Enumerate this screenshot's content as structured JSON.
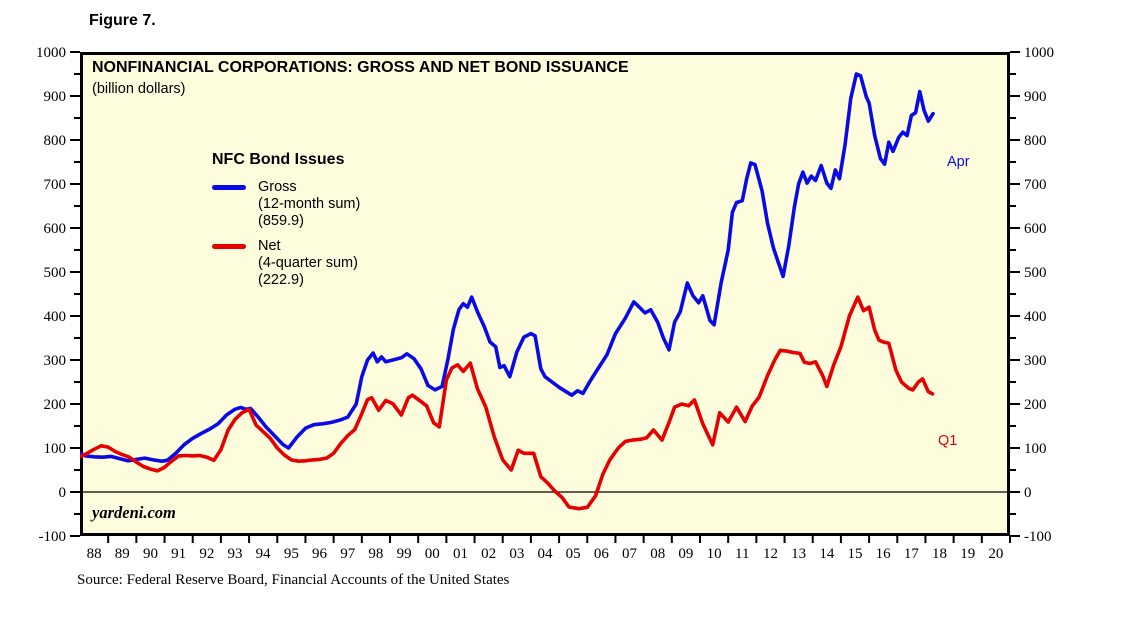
{
  "figure_label": "Figure 7.",
  "chart": {
    "title": "NONFINANCIAL CORPORATIONS: GROSS AND NET BOND ISSUANCE",
    "subtitle": "(billion dollars)",
    "watermark": "yardeni.com",
    "colors": {
      "gross": "#0A0AE6",
      "net": "#E60000",
      "plot_background": "#FDFDDE",
      "frame": "#000000"
    },
    "legend": {
      "title": "NFC Bond Issues",
      "entries": [
        {
          "label": "Gross",
          "sub": "(12-month sum)",
          "value": "(859.9)"
        },
        {
          "label": "Net",
          "sub": "(4-quarter sum)",
          "value": "(222.9)"
        }
      ]
    },
    "end_labels": {
      "gross": "Apr",
      "net": "Q1"
    }
  },
  "source": "Source: Federal Reserve Board, Financial Accounts of the United States",
  "chart_data": {
    "type": "line",
    "title": "NONFINANCIAL CORPORATIONS: GROSS AND NET BOND ISSUANCE",
    "subtitle": "(billion dollars)",
    "ylabel": "billion dollars",
    "x_range": [
      1988,
      2021
    ],
    "y_range": [
      -100,
      1000
    ],
    "y_ticks": [
      1000,
      900,
      800,
      700,
      600,
      500,
      400,
      300,
      200,
      100,
      0,
      -100
    ],
    "y_minor_step": 50,
    "grid": "zero-line-only",
    "legend_position": "inside-top-left",
    "x_ticks": [
      "88",
      "89",
      "90",
      "91",
      "92",
      "93",
      "94",
      "95",
      "96",
      "97",
      "98",
      "99",
      "00",
      "01",
      "02",
      "03",
      "04",
      "05",
      "06",
      "07",
      "08",
      "09",
      "10",
      "11",
      "12",
      "13",
      "14",
      "15",
      "16",
      "17",
      "18",
      "19",
      "20"
    ],
    "series": [
      {
        "name": "Gross (12-month sum)",
        "color": "#0A0AE6",
        "latest_label": "Apr",
        "latest_value": 859.9,
        "points": [
          [
            1988.0,
            88
          ],
          [
            1988.2,
            82
          ],
          [
            1988.5,
            80
          ],
          [
            1988.8,
            79
          ],
          [
            1989.1,
            81
          ],
          [
            1989.4,
            76
          ],
          [
            1989.7,
            71
          ],
          [
            1990.0,
            74
          ],
          [
            1990.3,
            77
          ],
          [
            1990.6,
            73
          ],
          [
            1990.9,
            70
          ],
          [
            1991.1,
            72
          ],
          [
            1991.4,
            88
          ],
          [
            1991.7,
            108
          ],
          [
            1992.0,
            122
          ],
          [
            1992.3,
            133
          ],
          [
            1992.6,
            143
          ],
          [
            1992.9,
            155
          ],
          [
            1993.2,
            175
          ],
          [
            1993.5,
            188
          ],
          [
            1993.7,
            192
          ],
          [
            1993.9,
            188
          ],
          [
            1994.05,
            190
          ],
          [
            1994.3,
            172
          ],
          [
            1994.6,
            148
          ],
          [
            1994.9,
            128
          ],
          [
            1995.2,
            108
          ],
          [
            1995.4,
            100
          ],
          [
            1995.7,
            125
          ],
          [
            1996.0,
            145
          ],
          [
            1996.3,
            153
          ],
          [
            1996.6,
            155
          ],
          [
            1996.9,
            158
          ],
          [
            1997.2,
            163
          ],
          [
            1997.5,
            170
          ],
          [
            1997.8,
            200
          ],
          [
            1998.0,
            262
          ],
          [
            1998.2,
            300
          ],
          [
            1998.4,
            316
          ],
          [
            1998.55,
            296
          ],
          [
            1998.7,
            307
          ],
          [
            1998.85,
            296
          ],
          [
            1999.1,
            300
          ],
          [
            1999.4,
            305
          ],
          [
            1999.6,
            314
          ],
          [
            1999.85,
            303
          ],
          [
            2000.1,
            280
          ],
          [
            2000.35,
            242
          ],
          [
            2000.6,
            232
          ],
          [
            2000.85,
            240
          ],
          [
            2001.05,
            300
          ],
          [
            2001.25,
            370
          ],
          [
            2001.45,
            415
          ],
          [
            2001.6,
            428
          ],
          [
            2001.75,
            420
          ],
          [
            2001.9,
            443
          ],
          [
            2002.1,
            410
          ],
          [
            2002.35,
            375
          ],
          [
            2002.55,
            341
          ],
          [
            2002.75,
            330
          ],
          [
            2002.9,
            283
          ],
          [
            2003.05,
            287
          ],
          [
            2003.25,
            262
          ],
          [
            2003.5,
            318
          ],
          [
            2003.75,
            352
          ],
          [
            2004.0,
            360
          ],
          [
            2004.15,
            355
          ],
          [
            2004.35,
            280
          ],
          [
            2004.5,
            262
          ],
          [
            2004.75,
            250
          ],
          [
            2005.0,
            238
          ],
          [
            2005.25,
            228
          ],
          [
            2005.45,
            220
          ],
          [
            2005.65,
            230
          ],
          [
            2005.85,
            224
          ],
          [
            2006.1,
            252
          ],
          [
            2006.4,
            282
          ],
          [
            2006.7,
            312
          ],
          [
            2007.0,
            360
          ],
          [
            2007.35,
            395
          ],
          [
            2007.65,
            432
          ],
          [
            2007.85,
            420
          ],
          [
            2008.05,
            407
          ],
          [
            2008.25,
            414
          ],
          [
            2008.5,
            386
          ],
          [
            2008.7,
            350
          ],
          [
            2008.9,
            323
          ],
          [
            2009.1,
            386
          ],
          [
            2009.3,
            410
          ],
          [
            2009.55,
            475
          ],
          [
            2009.75,
            446
          ],
          [
            2009.95,
            430
          ],
          [
            2010.1,
            446
          ],
          [
            2010.35,
            390
          ],
          [
            2010.5,
            380
          ],
          [
            2010.75,
            475
          ],
          [
            2011.0,
            550
          ],
          [
            2011.15,
            636
          ],
          [
            2011.3,
            658
          ],
          [
            2011.5,
            662
          ],
          [
            2011.65,
            710
          ],
          [
            2011.8,
            748
          ],
          [
            2011.95,
            744
          ],
          [
            2012.2,
            685
          ],
          [
            2012.4,
            610
          ],
          [
            2012.6,
            556
          ],
          [
            2012.75,
            527
          ],
          [
            2012.95,
            490
          ],
          [
            2013.15,
            560
          ],
          [
            2013.35,
            648
          ],
          [
            2013.5,
            700
          ],
          [
            2013.65,
            727
          ],
          [
            2013.8,
            702
          ],
          [
            2013.95,
            718
          ],
          [
            2014.1,
            708
          ],
          [
            2014.3,
            742
          ],
          [
            2014.5,
            702
          ],
          [
            2014.65,
            690
          ],
          [
            2014.8,
            732
          ],
          [
            2014.95,
            712
          ],
          [
            2015.15,
            790
          ],
          [
            2015.35,
            895
          ],
          [
            2015.55,
            950
          ],
          [
            2015.7,
            946
          ],
          [
            2015.9,
            898
          ],
          [
            2016.0,
            884
          ],
          [
            2016.2,
            810
          ],
          [
            2016.4,
            758
          ],
          [
            2016.55,
            745
          ],
          [
            2016.7,
            795
          ],
          [
            2016.85,
            774
          ],
          [
            2017.05,
            806
          ],
          [
            2017.2,
            818
          ],
          [
            2017.35,
            810
          ],
          [
            2017.5,
            856
          ],
          [
            2017.65,
            862
          ],
          [
            2017.8,
            910
          ],
          [
            2017.95,
            868
          ],
          [
            2018.1,
            843
          ],
          [
            2018.27,
            860
          ]
        ]
      },
      {
        "name": "Net (4-quarter sum)",
        "color": "#E60000",
        "latest_label": "Q1",
        "latest_value": 222.9,
        "points": [
          [
            1988.0,
            80
          ],
          [
            1988.25,
            88
          ],
          [
            1988.5,
            97
          ],
          [
            1988.75,
            105
          ],
          [
            1989.0,
            102
          ],
          [
            1989.25,
            92
          ],
          [
            1989.5,
            85
          ],
          [
            1989.75,
            79
          ],
          [
            1990.0,
            68
          ],
          [
            1990.25,
            58
          ],
          [
            1990.5,
            52
          ],
          [
            1990.75,
            48
          ],
          [
            1991.0,
            56
          ],
          [
            1991.25,
            70
          ],
          [
            1991.5,
            82
          ],
          [
            1991.75,
            83
          ],
          [
            1992.0,
            82
          ],
          [
            1992.25,
            83
          ],
          [
            1992.5,
            79
          ],
          [
            1992.75,
            72
          ],
          [
            1993.0,
            96
          ],
          [
            1993.25,
            140
          ],
          [
            1993.5,
            165
          ],
          [
            1993.75,
            180
          ],
          [
            1994.0,
            188
          ],
          [
            1994.25,
            152
          ],
          [
            1994.5,
            137
          ],
          [
            1994.75,
            122
          ],
          [
            1995.0,
            100
          ],
          [
            1995.25,
            84
          ],
          [
            1995.5,
            73
          ],
          [
            1995.75,
            70
          ],
          [
            1996.0,
            71
          ],
          [
            1996.25,
            73
          ],
          [
            1996.5,
            74
          ],
          [
            1996.75,
            77
          ],
          [
            1997.0,
            88
          ],
          [
            1997.25,
            110
          ],
          [
            1997.5,
            128
          ],
          [
            1997.75,
            142
          ],
          [
            1998.0,
            178
          ],
          [
            1998.2,
            210
          ],
          [
            1998.35,
            214
          ],
          [
            1998.6,
            186
          ],
          [
            1998.85,
            208
          ],
          [
            1999.1,
            201
          ],
          [
            1999.4,
            175
          ],
          [
            1999.65,
            214
          ],
          [
            1999.8,
            220
          ],
          [
            2000.05,
            208
          ],
          [
            2000.3,
            196
          ],
          [
            2000.55,
            157
          ],
          [
            2000.75,
            148
          ],
          [
            2001.0,
            255
          ],
          [
            2001.2,
            282
          ],
          [
            2001.4,
            289
          ],
          [
            2001.6,
            274
          ],
          [
            2001.85,
            293
          ],
          [
            2002.1,
            235
          ],
          [
            2002.4,
            193
          ],
          [
            2002.7,
            125
          ],
          [
            2003.0,
            73
          ],
          [
            2003.3,
            50
          ],
          [
            2003.55,
            95
          ],
          [
            2003.75,
            88
          ],
          [
            2004.1,
            88
          ],
          [
            2004.35,
            35
          ],
          [
            2004.6,
            20
          ],
          [
            2004.85,
            2
          ],
          [
            2005.1,
            -12
          ],
          [
            2005.35,
            -34
          ],
          [
            2005.7,
            -38
          ],
          [
            2006.0,
            -35
          ],
          [
            2006.3,
            -8
          ],
          [
            2006.55,
            40
          ],
          [
            2006.8,
            73
          ],
          [
            2007.1,
            100
          ],
          [
            2007.35,
            115
          ],
          [
            2007.6,
            118
          ],
          [
            2007.9,
            120
          ],
          [
            2008.1,
            123
          ],
          [
            2008.35,
            141
          ],
          [
            2008.65,
            118
          ],
          [
            2008.9,
            158
          ],
          [
            2009.1,
            193
          ],
          [
            2009.35,
            200
          ],
          [
            2009.6,
            196
          ],
          [
            2009.8,
            209
          ],
          [
            2010.1,
            155
          ],
          [
            2010.45,
            107
          ],
          [
            2010.7,
            180
          ],
          [
            2011.0,
            159
          ],
          [
            2011.3,
            193
          ],
          [
            2011.6,
            160
          ],
          [
            2011.85,
            195
          ],
          [
            2012.1,
            216
          ],
          [
            2012.4,
            265
          ],
          [
            2012.65,
            300
          ],
          [
            2012.85,
            322
          ],
          [
            2013.1,
            320
          ],
          [
            2013.3,
            317
          ],
          [
            2013.55,
            315
          ],
          [
            2013.7,
            295
          ],
          [
            2013.9,
            292
          ],
          [
            2014.1,
            296
          ],
          [
            2014.35,
            265
          ],
          [
            2014.5,
            240
          ],
          [
            2014.75,
            290
          ],
          [
            2015.0,
            330
          ],
          [
            2015.3,
            400
          ],
          [
            2015.6,
            443
          ],
          [
            2015.8,
            412
          ],
          [
            2016.0,
            420
          ],
          [
            2016.2,
            368
          ],
          [
            2016.35,
            345
          ],
          [
            2016.5,
            341
          ],
          [
            2016.7,
            338
          ],
          [
            2016.95,
            277
          ],
          [
            2017.15,
            250
          ],
          [
            2017.4,
            236
          ],
          [
            2017.55,
            232
          ],
          [
            2017.75,
            250
          ],
          [
            2017.9,
            257
          ],
          [
            2018.1,
            228
          ],
          [
            2018.25,
            223
          ]
        ]
      }
    ]
  }
}
